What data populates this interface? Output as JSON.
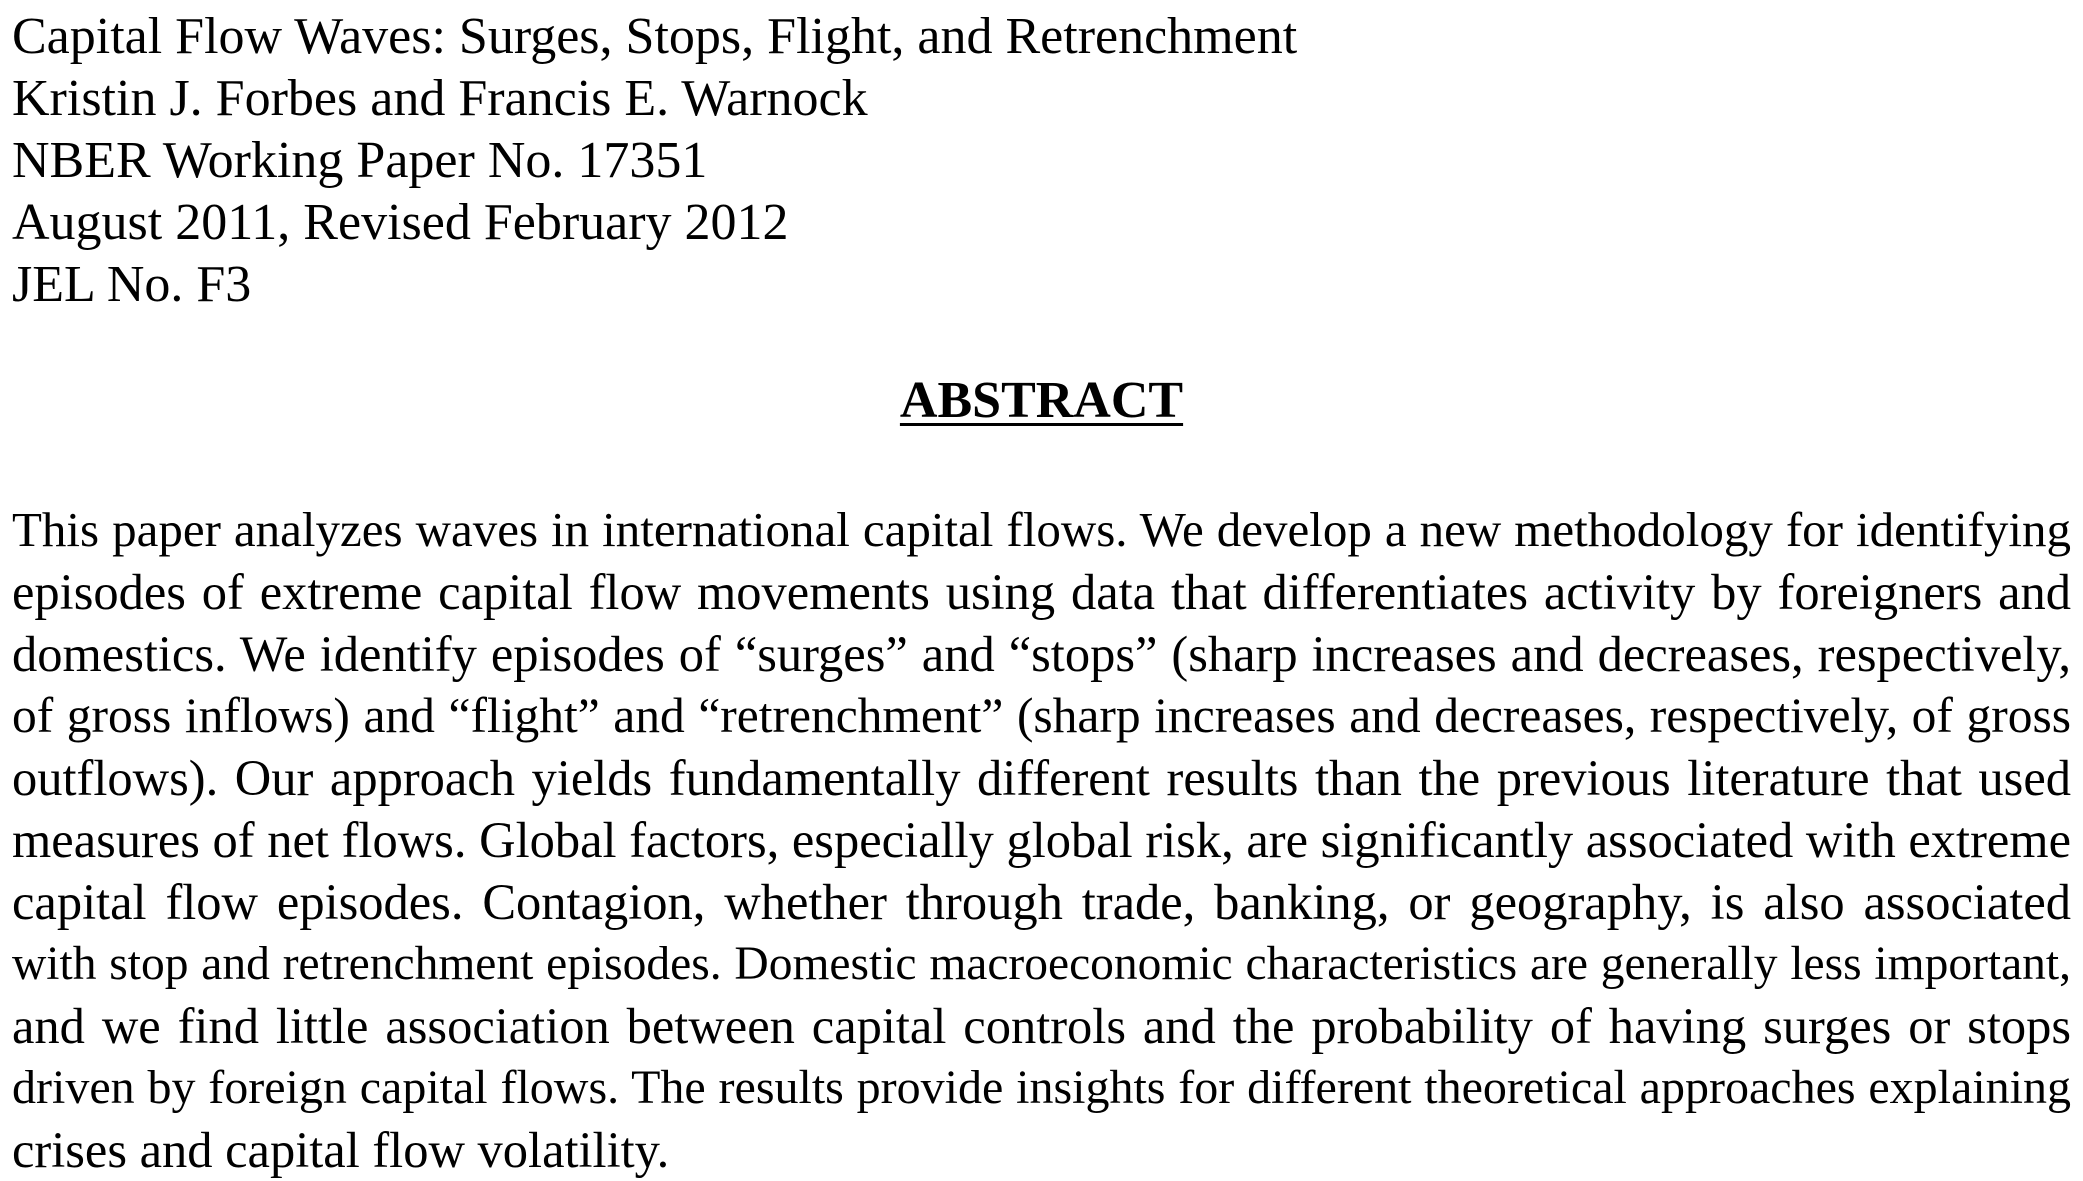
{
  "header": {
    "title": "Capital Flow Waves: Surges, Stops, Flight, and Retrenchment",
    "authors": "Kristin J. Forbes and Francis E. Warnock",
    "series": "NBER Working Paper No. 17351",
    "date": "August 2011, Revised February 2012",
    "jel": "JEL No. F3"
  },
  "abstract": {
    "heading": "ABSTRACT",
    "lines": [
      "This paper analyzes waves in international capital flows. We develop a new methodology for identifying",
      "episodes of extreme capital flow movements using data that differentiates activity by foreigners and",
      "domestics. We identify episodes of “surges” and “stops” (sharp increases and decreases, respectively,",
      "of gross inflows) and “flight” and “retrenchment” (sharp increases and decreases, respectively, of gross",
      "outflows). Our approach yields fundamentally different results than the previous literature that used",
      "measures of net flows. Global factors, especially global risk, are significantly associated with extreme",
      "capital flow episodes. Contagion, whether through trade, banking, or geography, is also associated",
      "with stop and retrenchment episodes. Domestic macroeconomic characteristics are generally less important,",
      "and we find little association between capital controls and the probability of having surges or stops",
      "driven by foreign capital flows. The results provide insights for different theoretical approaches explaining",
      "crises and capital flow volatility."
    ]
  }
}
